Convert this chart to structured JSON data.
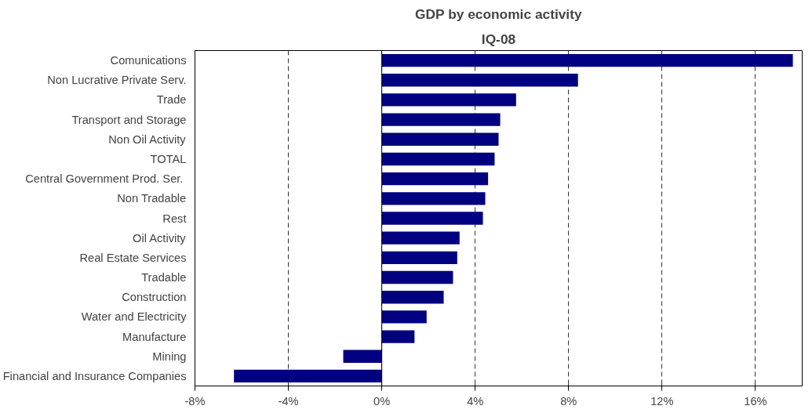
{
  "chart_data": {
    "type": "bar",
    "orientation": "horizontal",
    "title": "GDP by economic activity",
    "subtitle": "IQ-08",
    "categories": [
      "Comunications",
      "Non Lucrative Private Serv.",
      "Trade",
      "Transport and Storage",
      "Non Oil Activity",
      "TOTAL",
      "Central Government Prod. Ser. ",
      "Non Tradable",
      "Rest",
      "Oil Activity",
      "Real Estate Services",
      "Tradable",
      "Construction",
      "Water and Electricity",
      "Manufacture",
      "Mining",
      "Financial and Insurance Companies"
    ],
    "values": [
      17.6,
      8.4,
      5.75,
      5.07,
      5.0,
      4.83,
      4.55,
      4.43,
      4.33,
      3.33,
      3.23,
      3.05,
      2.65,
      1.92,
      1.4,
      -1.65,
      -6.33
    ],
    "color": "#000080",
    "xlim": [
      -8,
      18
    ],
    "xticks": [
      {
        "value": -8,
        "label": "-8%"
      },
      {
        "value": -4,
        "label": "-4%"
      },
      {
        "value": 0,
        "label": "0%"
      },
      {
        "value": 4,
        "label": "4%"
      },
      {
        "value": 8,
        "label": "8%"
      },
      {
        "value": 12,
        "label": "12%"
      },
      {
        "value": 16,
        "label": "16%"
      }
    ],
    "grid": "x"
  }
}
